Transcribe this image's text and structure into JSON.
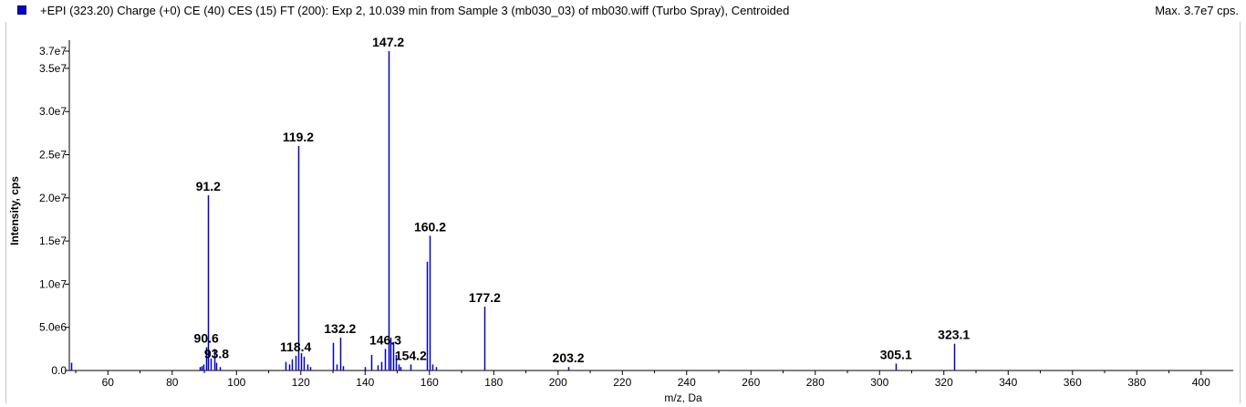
{
  "header": {
    "title": "+EPI (323.20) Charge (+0) CE (40) CES (15) FT (200): Exp 2, 10.039 min from Sample 3 (mb030_03) of mb030.wiff (Turbo Spray), Centroided",
    "max": "Max. 3.7e7 cps.",
    "legend_color": "#0000cc"
  },
  "chart_data": {
    "type": "bar",
    "title": "+EPI (323.20) Charge (+0) CE (40) CES (15) FT (200): Exp 2, 10.039 min from Sample 3 (mb030_03) of mb030.wiff (Turbo Spray), Centroided",
    "xlabel": "m/z, Da",
    "ylabel": "Intensity, cps",
    "xlim": [
      48,
      410
    ],
    "ylim": [
      0,
      37000000
    ],
    "line_color": "#0000cc",
    "grid": false,
    "x_ticks": [
      60,
      80,
      100,
      120,
      140,
      160,
      180,
      200,
      220,
      240,
      260,
      280,
      300,
      320,
      340,
      360,
      380,
      400
    ],
    "y_ticks": [
      {
        "value": 0,
        "label": "0.0"
      },
      {
        "value": 5000000,
        "label": "5.0e6"
      },
      {
        "value": 10000000,
        "label": "1.0e7"
      },
      {
        "value": 15000000,
        "label": "1.5e7"
      },
      {
        "value": 20000000,
        "label": "2.0e7"
      },
      {
        "value": 25000000,
        "label": "2.5e7"
      },
      {
        "value": 30000000,
        "label": "3.0e7"
      },
      {
        "value": 35000000,
        "label": "3.5e7"
      },
      {
        "value": 37000000,
        "label": "3.7e7"
      }
    ],
    "peaks": [
      {
        "mz": 48.5,
        "intensity": 900000
      },
      {
        "mz": 88.5,
        "intensity": 400000
      },
      {
        "mz": 89.2,
        "intensity": 500000
      },
      {
        "mz": 89.8,
        "intensity": 700000
      },
      {
        "mz": 90.6,
        "intensity": 2700000
      },
      {
        "mz": 91.2,
        "intensity": 20300000
      },
      {
        "mz": 92.0,
        "intensity": 1400000
      },
      {
        "mz": 93.0,
        "intensity": 2500000
      },
      {
        "mz": 93.8,
        "intensity": 900000
      },
      {
        "mz": 94.8,
        "intensity": 400000
      },
      {
        "mz": 115.2,
        "intensity": 1000000
      },
      {
        "mz": 116.3,
        "intensity": 700000
      },
      {
        "mz": 117.2,
        "intensity": 1300000
      },
      {
        "mz": 118.4,
        "intensity": 1700000
      },
      {
        "mz": 119.2,
        "intensity": 26000000
      },
      {
        "mz": 120.2,
        "intensity": 2000000
      },
      {
        "mz": 121.0,
        "intensity": 1600000
      },
      {
        "mz": 122.0,
        "intensity": 700000
      },
      {
        "mz": 123.0,
        "intensity": 400000
      },
      {
        "mz": 130.0,
        "intensity": 3200000
      },
      {
        "mz": 131.0,
        "intensity": 700000
      },
      {
        "mz": 132.2,
        "intensity": 3800000
      },
      {
        "mz": 133.0,
        "intensity": 500000
      },
      {
        "mz": 140.0,
        "intensity": 400000
      },
      {
        "mz": 142.0,
        "intensity": 1800000
      },
      {
        "mz": 144.0,
        "intensity": 600000
      },
      {
        "mz": 145.0,
        "intensity": 1000000
      },
      {
        "mz": 146.3,
        "intensity": 2500000
      },
      {
        "mz": 147.2,
        "intensity": 37000000
      },
      {
        "mz": 148.0,
        "intensity": 3800000
      },
      {
        "mz": 148.8,
        "intensity": 3300000
      },
      {
        "mz": 149.5,
        "intensity": 1800000
      },
      {
        "mz": 150.3,
        "intensity": 700000
      },
      {
        "mz": 151.0,
        "intensity": 400000
      },
      {
        "mz": 154.2,
        "intensity": 700000
      },
      {
        "mz": 159.2,
        "intensity": 12600000
      },
      {
        "mz": 160.2,
        "intensity": 15600000
      },
      {
        "mz": 161.0,
        "intensity": 700000
      },
      {
        "mz": 162.0,
        "intensity": 400000
      },
      {
        "mz": 177.2,
        "intensity": 7400000
      },
      {
        "mz": 203.2,
        "intensity": 400000
      },
      {
        "mz": 305.1,
        "intensity": 800000
      },
      {
        "mz": 323.1,
        "intensity": 3100000
      }
    ],
    "annotations": [
      {
        "text": "91.2",
        "mz": 91.2,
        "intensity": 20300000
      },
      {
        "text": "119.2",
        "mz": 119.2,
        "intensity": 26000000
      },
      {
        "text": "147.2",
        "mz": 147.2,
        "intensity": 37000000
      },
      {
        "text": "160.2",
        "mz": 160.2,
        "intensity": 15600000
      },
      {
        "text": "177.2",
        "mz": 177.2,
        "intensity": 7400000
      },
      {
        "text": "90.6",
        "mz": 90.6,
        "intensity": 2700000
      },
      {
        "text": "93.8",
        "mz": 93.8,
        "intensity": 900000
      },
      {
        "text": "118.4",
        "mz": 118.4,
        "intensity": 1700000
      },
      {
        "text": "132.2",
        "mz": 132.2,
        "intensity": 3800000
      },
      {
        "text": "146.3",
        "mz": 146.3,
        "intensity": 2500000
      },
      {
        "text": "154.2",
        "mz": 154.2,
        "intensity": 700000
      },
      {
        "text": "203.2",
        "mz": 203.2,
        "intensity": 400000
      },
      {
        "text": "305.1",
        "mz": 305.1,
        "intensity": 800000
      },
      {
        "text": "323.1",
        "mz": 323.1,
        "intensity": 3100000
      }
    ]
  }
}
